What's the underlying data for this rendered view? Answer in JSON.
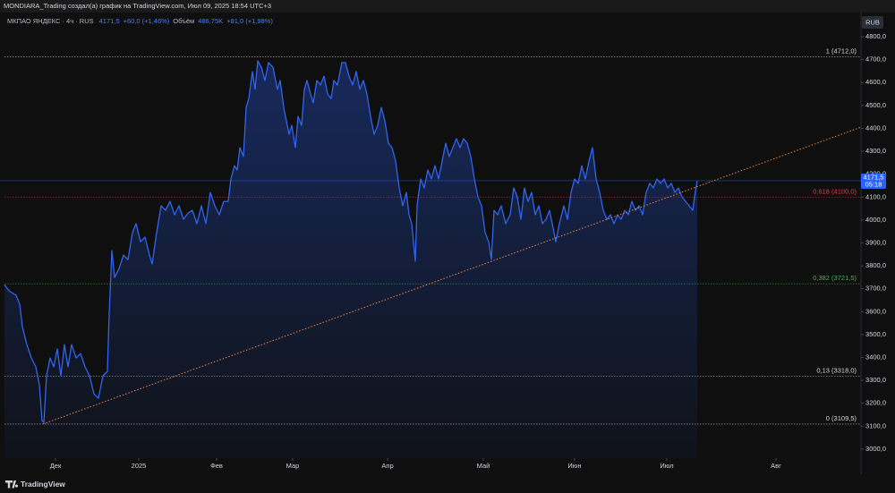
{
  "header": {
    "text": "MONDIARA_Trading создал(а) график на TradingView.com, Июл 09, 2025 18:54 UTC+3"
  },
  "chart_data": {
    "type": "line",
    "symbol": "МКПАО ЯНДЕКС · 4ч · RUS",
    "change": "+60,0 (+1,46%)",
    "volume_label": "Объём",
    "volume": "486,75K",
    "volume_change": "+81,0 (+1,98%)",
    "currency": "RUB",
    "color": "#3164f0",
    "x": [
      5,
      10,
      18,
      22,
      25,
      30,
      35,
      40,
      44,
      47,
      49,
      52,
      56,
      60,
      64,
      68,
      72,
      76,
      80,
      85,
      90,
      95,
      100,
      105,
      110,
      115,
      120,
      122,
      125,
      128,
      133,
      138,
      143,
      148,
      152,
      157,
      162,
      167,
      170,
      175,
      180,
      185,
      190,
      195,
      200,
      205,
      210,
      215,
      220,
      225,
      230,
      235,
      240,
      245,
      250,
      255,
      258,
      262,
      265,
      268,
      272,
      275,
      278,
      282,
      285,
      288,
      292,
      296,
      300,
      305,
      310,
      313,
      317,
      320,
      323,
      326,
      330,
      333,
      337,
      340,
      343,
      347,
      350,
      354,
      358,
      362,
      366,
      370,
      373,
      377,
      382,
      386,
      390,
      394,
      398,
      402,
      406,
      410,
      414,
      418,
      422,
      426,
      430,
      434,
      438,
      442,
      446,
      450,
      454,
      457,
      460,
      462,
      464,
      466,
      470,
      474,
      478,
      482,
      486,
      490,
      494,
      498,
      502,
      506,
      510,
      514,
      518,
      522,
      526,
      530,
      534,
      538,
      542,
      546,
      549,
      552,
      556,
      560,
      565,
      570,
      574,
      578,
      582,
      586,
      590,
      594,
      598,
      602,
      606,
      610,
      614,
      618,
      621,
      625,
      630,
      634,
      638,
      642,
      646,
      650,
      654,
      658,
      662,
      666,
      670,
      674,
      678,
      682,
      686,
      690,
      694,
      698,
      702,
      706,
      710,
      714,
      718,
      722,
      726,
      730,
      734,
      738,
      742,
      746,
      750,
      754,
      758,
      762,
      766,
      770,
      774,
      776,
      779
    ],
    "values": [
      3718,
      3691,
      3671,
      3632,
      3534,
      3456,
      3398,
      3359,
      3280,
      3124,
      3116,
      3320,
      3398,
      3359,
      3437,
      3320,
      3456,
      3359,
      3456,
      3398,
      3417,
      3359,
      3320,
      3241,
      3222,
      3320,
      3339,
      3593,
      3866,
      3749,
      3788,
      3847,
      3827,
      3945,
      3984,
      3905,
      3925,
      3847,
      3808,
      3945,
      4062,
      4042,
      4081,
      4023,
      4062,
      4003,
      4030,
      4042,
      3984,
      4062,
      3984,
      4120,
      4062,
      4023,
      4081,
      4081,
      4179,
      4237,
      4218,
      4316,
      4277,
      4491,
      4530,
      4648,
      4570,
      4695,
      4667,
      4609,
      4687,
      4667,
      4570,
      4609,
      4491,
      4433,
      4374,
      4413,
      4316,
      4452,
      4413,
      4570,
      4609,
      4550,
      4511,
      4609,
      4589,
      4628,
      4550,
      4530,
      4609,
      4589,
      4687,
      4687,
      4628,
      4589,
      4648,
      4570,
      4609,
      4550,
      4452,
      4374,
      4413,
      4491,
      4433,
      4335,
      4316,
      4257,
      4140,
      4062,
      4120,
      4023,
      3984,
      3905,
      3820,
      4062,
      4179,
      4140,
      4218,
      4179,
      4237,
      4179,
      4257,
      4335,
      4277,
      4316,
      4355,
      4316,
      4355,
      4335,
      4277,
      4179,
      4101,
      4062,
      3945,
      3905,
      3828,
      4042,
      4023,
      4062,
      3984,
      4023,
      4140,
      4101,
      4003,
      4140,
      4081,
      4120,
      4023,
      4062,
      3984,
      4003,
      4042,
      3964,
      3905,
      3984,
      4062,
      4003,
      4120,
      4179,
      4160,
      4237,
      4179,
      4257,
      4316,
      4179,
      4120,
      4042,
      4003,
      4023,
      3984,
      4023,
      4003,
      4042,
      4023,
      4081,
      4042,
      4062,
      4023,
      4120,
      4160,
      4140,
      4179,
      4160,
      4179,
      4140,
      4160,
      4120,
      4140,
      4101,
      4081,
      4062,
      4042,
      4101,
      4171.5
    ],
    "last_price": {
      "value": 4171.5,
      "label": "4171,5",
      "time": "05:18",
      "color": "#2962ff"
    },
    "levels": [
      {
        "value": 4712,
        "label": "1 (4712,0)",
        "color": "#d1d4dc"
      },
      {
        "value": 4100,
        "label": "0,618 (4100,0)",
        "color": "#f23645"
      },
      {
        "value": 3721.5,
        "label": "0,382 (3721,5)",
        "color": "#4caf50"
      },
      {
        "value": 3318,
        "label": "0,13 (3318,0)",
        "color": "#d1d4dc"
      },
      {
        "value": 3109.5,
        "label": "0 (3109,5)",
        "color": "#d1d4dc"
      }
    ],
    "trendline": {
      "x": [
        48,
        962
      ],
      "values": [
        3109.5,
        4405
      ],
      "color": "#f0843c"
    },
    "xlim": [
      0,
      962
    ],
    "ylim": [
      2960,
      4900
    ],
    "xticks": [
      {
        "value": 62,
        "label": "Дек"
      },
      {
        "value": 155,
        "label": "2025"
      },
      {
        "value": 242,
        "label": "Фев"
      },
      {
        "value": 327,
        "label": "Мар"
      },
      {
        "value": 433,
        "label": "Апр"
      },
      {
        "value": 540,
        "label": "Май"
      },
      {
        "value": 642,
        "label": "Июн"
      },
      {
        "value": 745,
        "label": "Июл"
      },
      {
        "value": 867,
        "label": "Авг"
      }
    ],
    "yticks": [
      {
        "value": 3000,
        "label": "3000,0"
      },
      {
        "value": 3100,
        "label": "3100,0"
      },
      {
        "value": 3200,
        "label": "3200,0"
      },
      {
        "value": 3300,
        "label": "3300,0"
      },
      {
        "value": 3400,
        "label": "3400,0"
      },
      {
        "value": 3500,
        "label": "3500,0"
      },
      {
        "value": 3600,
        "label": "3600,0"
      },
      {
        "value": 3700,
        "label": "3700,0"
      },
      {
        "value": 3800,
        "label": "3800,0"
      },
      {
        "value": 3900,
        "label": "3900,0"
      },
      {
        "value": 4000,
        "label": "4000,0"
      },
      {
        "value": 4100,
        "label": "4100,0"
      },
      {
        "value": 4200,
        "label": "4200,0"
      },
      {
        "value": 4300,
        "label": "4300,0"
      },
      {
        "value": 4400,
        "label": "4400,0"
      },
      {
        "value": 4500,
        "label": "4500,0"
      },
      {
        "value": 4600,
        "label": "4600,0"
      },
      {
        "value": 4700,
        "label": "4700,0"
      },
      {
        "value": 4800,
        "label": "4800,0"
      }
    ]
  },
  "footer": {
    "brand": "TradingView"
  }
}
